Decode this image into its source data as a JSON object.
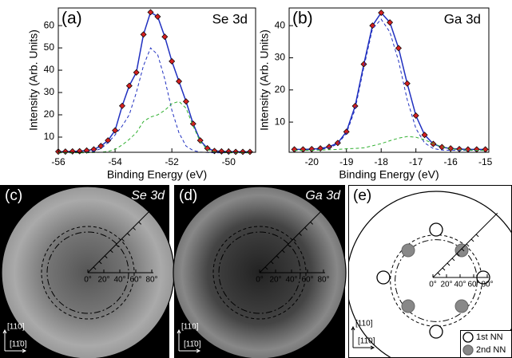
{
  "chart_data": [
    {
      "type": "line",
      "label": "(a)",
      "title": "Se 3d",
      "xlabel": "Binding Energy (eV)",
      "ylabel": "Intensity (Arb. Units)",
      "x": [
        -56,
        -55.75,
        -55.5,
        -55.25,
        -55,
        -54.75,
        -54.5,
        -54.25,
        -54,
        -53.75,
        -53.5,
        -53.25,
        -53,
        -52.75,
        -52.5,
        -52.25,
        -52,
        -51.75,
        -51.5,
        -51.25,
        -51,
        -50.75,
        -50.5,
        -50.25,
        -50,
        -49.75,
        -49.5,
        -49.25
      ],
      "series": [
        {
          "style": "markers",
          "color": "#d42020",
          "line_color": "#2030c0",
          "values": [
            3.5,
            3.5,
            3.6,
            3.7,
            4,
            4.5,
            6,
            8.5,
            13,
            24,
            33,
            39,
            56,
            66,
            64,
            55,
            44,
            35,
            26,
            16,
            8.5,
            5,
            3.8,
            3.6,
            3.5,
            3.4,
            3.4,
            3.4
          ]
        },
        {
          "style": "dashed",
          "color": "#2030c0",
          "values": [
            3,
            3,
            3,
            3.1,
            3.3,
            3.7,
            4.8,
            7.5,
            11,
            15,
            20,
            30,
            42,
            50,
            47,
            36,
            22,
            12,
            6,
            4,
            3.3,
            3.1,
            3,
            3,
            3,
            3,
            3,
            3
          ]
        },
        {
          "style": "dashed",
          "color": "#30b030",
          "values": [
            3,
            3,
            3,
            3,
            3,
            3.1,
            3.2,
            3.6,
            4.5,
            6.5,
            9,
            12,
            17,
            19,
            20,
            22,
            25,
            26,
            23,
            15,
            8,
            4.5,
            3.4,
            3.1,
            3,
            3,
            3,
            3
          ]
        }
      ],
      "xlim": [
        -56,
        -49.05
      ],
      "xticks": [
        -56,
        -54,
        -52,
        -50
      ],
      "ylim": [
        3.2,
        67.9
      ],
      "yticks": [
        10,
        20,
        30,
        40,
        50,
        60
      ]
    },
    {
      "type": "line",
      "label": "(b)",
      "title": "Ga 3d",
      "xlabel": "Binding Energy (eV)",
      "ylabel": "Intensity (Arb. Units)",
      "x": [
        -20.5,
        -20.25,
        -20,
        -19.75,
        -19.5,
        -19.25,
        -19,
        -18.75,
        -18.5,
        -18.25,
        -18,
        -17.75,
        -17.5,
        -17.25,
        -17,
        -16.75,
        -16.5,
        -16.25,
        -16,
        -15.75,
        -15.5,
        -15.25,
        -15
      ],
      "series": [
        {
          "style": "markers",
          "color": "#d42020",
          "line_color": "#2030c0",
          "values": [
            1.5,
            1.5,
            1.6,
            1.8,
            2.3,
            3.5,
            7,
            15,
            28,
            40,
            44,
            41,
            33,
            22,
            12,
            6,
            3.2,
            2.2,
            1.8,
            1.6,
            1.5,
            1.5,
            1.5
          ]
        },
        {
          "style": "dashed",
          "color": "#2030c0",
          "values": [
            1.2,
            1.2,
            1.3,
            1.5,
            2,
            3.2,
            6.5,
            14,
            27,
            39,
            42,
            38,
            29,
            17,
            8,
            3.5,
            1.8,
            1.3,
            1.2,
            1.2,
            1.2,
            1.2,
            1.2
          ]
        },
        {
          "style": "dashed",
          "color": "#30b030",
          "values": [
            1.2,
            1.2,
            1.2,
            1.3,
            1.4,
            1.5,
            1.7,
            1.8,
            2,
            2.6,
            3.3,
            4.2,
            5,
            5.5,
            5.3,
            4.5,
            3.3,
            2.3,
            1.7,
            1.4,
            1.3,
            1.2,
            1.2
          ]
        }
      ],
      "xlim": [
        -20.65,
        -14.9
      ],
      "xticks": [
        -20,
        -19,
        -18,
        -17,
        -16,
        -15
      ],
      "ylim": [
        0.6,
        45.5
      ],
      "yticks": [
        10,
        20,
        30,
        40
      ]
    }
  ],
  "polar_panels": [
    {
      "label": "(c)",
      "title": "Se 3d"
    },
    {
      "label": "(d)",
      "title": "Ga 3d"
    },
    {
      "label": "(e)"
    }
  ],
  "polar_ticks": [
    "0°",
    "20°",
    "40°",
    "60°",
    "80°"
  ],
  "directions": [
    "[110]",
    "[11̄0]"
  ],
  "legend": [
    "1st NN",
    "2nd NN"
  ]
}
